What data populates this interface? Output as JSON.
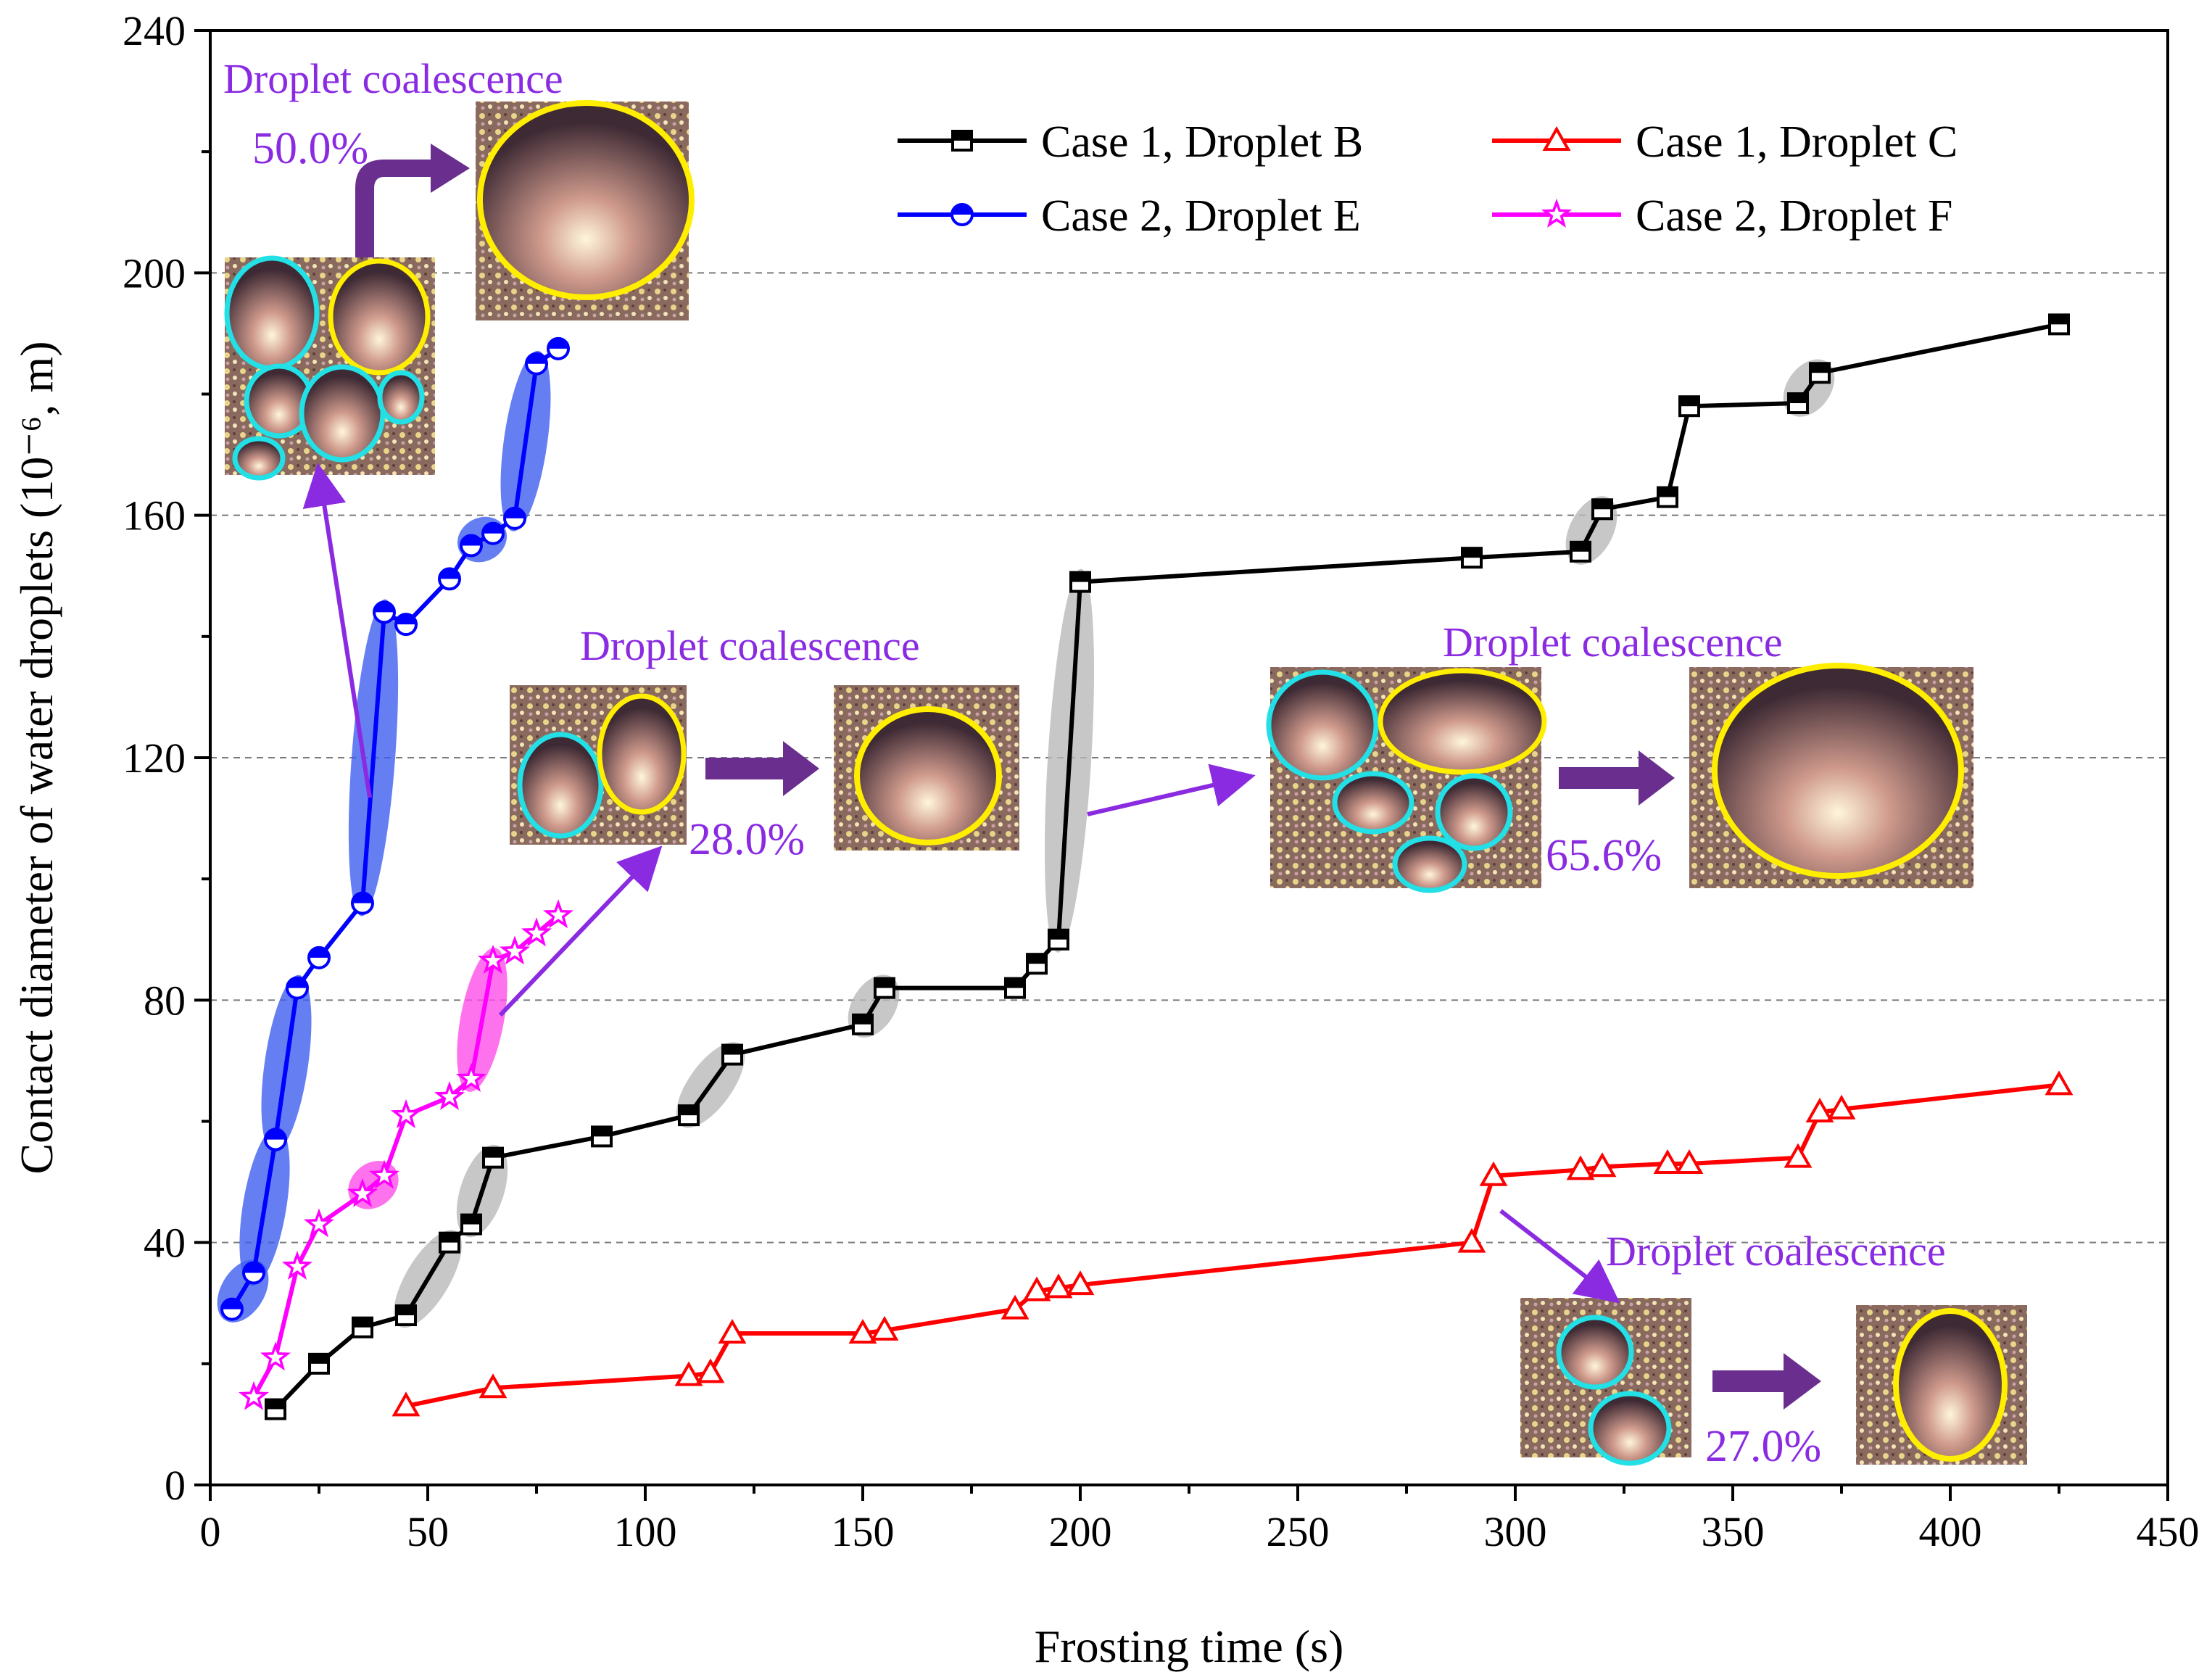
{
  "chart_data": {
    "type": "line",
    "title": "",
    "xlabel": "Frosting time (s)",
    "ylabel": "Contact diameter of water droplets (10⁻⁶, m)",
    "xlim": [
      0,
      450
    ],
    "ylim": [
      0,
      240
    ],
    "xticks": [
      0,
      50,
      100,
      150,
      200,
      250,
      300,
      350,
      400,
      450
    ],
    "yticks": [
      0,
      40,
      80,
      120,
      160,
      200,
      240
    ],
    "grid": "horizontal dashed at 40, 80, 120, 160, 200",
    "legend_position": "top-right",
    "series": [
      {
        "name": "Case 1, Droplet B",
        "color": "#000000",
        "marker": "square-half-filled",
        "x": [
          15,
          25,
          35,
          45,
          55,
          60,
          65,
          90,
          110,
          120,
          150,
          155,
          185,
          190,
          195,
          200,
          290,
          315,
          320,
          335,
          340,
          365,
          370,
          425
        ],
        "y": [
          12.5,
          20,
          26,
          28,
          40,
          43,
          54,
          57.5,
          61,
          71,
          76,
          82,
          82,
          86,
          90,
          149,
          153,
          154,
          161,
          163,
          178,
          178.5,
          183.5,
          191.5
        ]
      },
      {
        "name": "Case 1, Droplet C",
        "color": "#ff0000",
        "marker": "triangle-up-open",
        "x": [
          45,
          65,
          110,
          115,
          120,
          150,
          155,
          185,
          190,
          195,
          200,
          290,
          295,
          315,
          320,
          335,
          340,
          365,
          370,
          375,
          425
        ],
        "y": [
          13,
          16,
          18,
          18.5,
          25,
          25,
          25.5,
          29,
          32,
          32.5,
          33,
          40,
          51,
          52,
          52.5,
          53,
          53,
          54,
          61.5,
          62,
          66
        ]
      },
      {
        "name": "Case 2, Droplet E",
        "color": "#0000ff",
        "marker": "circle-half-filled",
        "x": [
          5,
          10,
          15,
          20,
          25,
          35,
          40,
          45,
          55,
          60,
          65,
          70,
          75,
          80
        ],
        "y": [
          29,
          35,
          57,
          82,
          87,
          96,
          144,
          142,
          149.5,
          155,
          157,
          159.5,
          185,
          187.5
        ]
      },
      {
        "name": "Case 2, Droplet F",
        "color": "#ff00ff",
        "marker": "star-open",
        "x": [
          10,
          15,
          20,
          25,
          35,
          40,
          45,
          55,
          60,
          65,
          70,
          75,
          80
        ],
        "y": [
          14.5,
          21,
          36,
          43,
          48,
          51,
          61,
          64,
          67,
          86.5,
          88,
          91,
          94
        ]
      }
    ],
    "annotations": [
      {
        "title": "Droplet coalescence",
        "percent": "50.0%"
      },
      {
        "title": "Droplet coalescence",
        "percent": "28.0%"
      },
      {
        "title": "Droplet coalescence",
        "percent": "65.6%"
      },
      {
        "title": "Droplet coalescence",
        "percent": "27.0%"
      }
    ]
  },
  "colors": {
    "annotation_text": "#8a2be2",
    "arrow": "#8a2be2",
    "block_arrow": "#6a2f8e",
    "cyan_ring": "#22e0e6",
    "yellow_ring": "#ffee00",
    "shade_gray": "#b9b9b9",
    "shade_blue": "#3f5ff0",
    "shade_magenta": "#ff4fe8"
  }
}
